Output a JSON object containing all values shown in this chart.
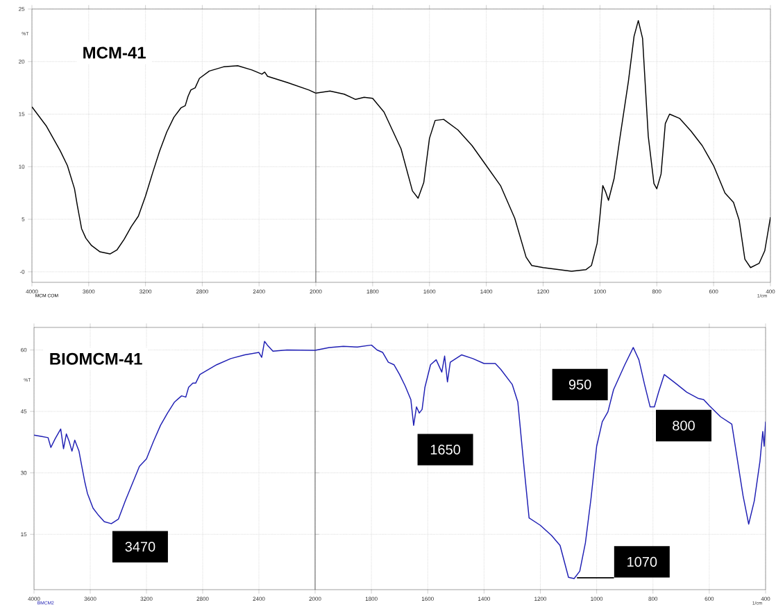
{
  "chart_data": [
    {
      "type": "line",
      "title": "MCM-41",
      "ylabel": "%T",
      "annotations": [
        "MCM COM"
      ],
      "color": "#000000",
      "grid": true,
      "x": [
        4000,
        3950,
        3900,
        3850,
        3800,
        3750,
        3700,
        3680,
        3650,
        3620,
        3580,
        3520,
        3450,
        3400,
        3350,
        3300,
        3250,
        3200,
        3150,
        3100,
        3050,
        3000,
        2950,
        2920,
        2900,
        2880,
        2850,
        2820,
        2750,
        2650,
        2550,
        2450,
        2380,
        2360,
        2340,
        2200,
        2050,
        2000
      ],
      "values": [
        15.7,
        14.8,
        13.9,
        12.7,
        11.5,
        10.1,
        7.9,
        6.3,
        4.1,
        3.2,
        2.5,
        1.9,
        1.7,
        2.1,
        3.1,
        4.3,
        5.3,
        7.2,
        9.4,
        11.5,
        13.3,
        14.7,
        15.6,
        15.8,
        16.7,
        17.3,
        17.5,
        18.4,
        19.1,
        19.5,
        19.6,
        19.2,
        18.8,
        19.0,
        18.6,
        18.0,
        17.3,
        17.0
      ],
      "xlim": [
        4000,
        2000
      ],
      "xticks": [
        4000,
        3600,
        3200,
        2800,
        2400,
        2000
      ],
      "ylim": [
        -1,
        25
      ],
      "yticks": [
        {
          "value": 0,
          "label": "-0"
        },
        5,
        10,
        15,
        20,
        25
      ]
    },
    {
      "type": "line",
      "xlabel": "1/cm",
      "color": "#000000",
      "grid": true,
      "tick_labels": "x",
      "x": [
        2000,
        1950,
        1900,
        1860,
        1830,
        1800,
        1760,
        1700,
        1660,
        1640,
        1620,
        1600,
        1580,
        1550,
        1500,
        1450,
        1400,
        1350,
        1300,
        1260,
        1240,
        1200,
        1100,
        1050,
        1030,
        1010,
        1000,
        990,
        980,
        970,
        950,
        930,
        900,
        880,
        865,
        850,
        830,
        810,
        800,
        785,
        770,
        755,
        720,
        680,
        640,
        600,
        560,
        530,
        510,
        490,
        470,
        440,
        420,
        400
      ],
      "values": [
        17.0,
        17.2,
        16.9,
        16.4,
        16.6,
        16.5,
        15.2,
        11.7,
        7.7,
        7.0,
        8.5,
        12.7,
        14.4,
        14.5,
        13.5,
        12.0,
        10.1,
        8.2,
        5.1,
        1.4,
        0.6,
        0.4,
        0.05,
        0.2,
        0.6,
        2.7,
        5.3,
        8.2,
        7.6,
        6.8,
        8.9,
        12.7,
        18.1,
        22.4,
        23.9,
        22.2,
        12.9,
        8.4,
        7.9,
        9.3,
        14.1,
        15.0,
        14.6,
        13.4,
        12.0,
        10.1,
        7.5,
        6.6,
        4.9,
        1.2,
        0.4,
        0.8,
        2.0,
        5.2
      ],
      "xlim": [
        2000,
        400
      ],
      "xticks": [
        1800,
        1600,
        1400,
        1200,
        1000,
        800,
        600,
        400
      ],
      "ylim": [
        -1,
        25
      ],
      "yticks": [
        0,
        5,
        10,
        15,
        20,
        25
      ]
    },
    {
      "type": "line",
      "title": "BIOMCM-41",
      "ylabel": "%T",
      "color": "#1f1fb4",
      "grid": true,
      "annotations": [
        "BMCM2",
        {
          "text": "3470",
          "x": 3470,
          "y": 17.9
        }
      ],
      "x": [
        4000,
        3950,
        3900,
        3880,
        3850,
        3810,
        3790,
        3770,
        3750,
        3730,
        3710,
        3680,
        3660,
        3640,
        3620,
        3580,
        3540,
        3500,
        3450,
        3400,
        3350,
        3300,
        3250,
        3200,
        3150,
        3100,
        3050,
        3000,
        2950,
        2920,
        2900,
        2870,
        2850,
        2820,
        2700,
        2600,
        2500,
        2400,
        2380,
        2360,
        2340,
        2300,
        2200,
        2000
      ],
      "values": [
        39.2,
        38.9,
        38.6,
        36.2,
        38.3,
        40.7,
        35.9,
        39.5,
        37.7,
        35.3,
        38.0,
        35.3,
        31.6,
        28.0,
        25.0,
        21.4,
        19.6,
        18.1,
        17.6,
        18.7,
        23.2,
        27.4,
        31.6,
        33.4,
        37.7,
        41.6,
        44.6,
        47.3,
        48.8,
        48.5,
        50.9,
        51.9,
        51.9,
        54.0,
        56.4,
        57.9,
        58.8,
        59.4,
        58.2,
        62.1,
        61.2,
        59.7,
        60.0,
        59.9
      ],
      "xlim": [
        4000,
        2000
      ],
      "xticks": [
        4000,
        3600,
        3200,
        2800,
        2400,
        2000
      ],
      "ylim": [
        1.5,
        65.5
      ],
      "yticks": [
        15,
        30,
        45,
        60
      ]
    },
    {
      "type": "line",
      "xlabel": "1/cm",
      "color": "#1f1fb4",
      "grid": true,
      "tick_labels": "x",
      "annotations": [
        {
          "text": "1650",
          "x": 1650,
          "y": 41.6
        },
        {
          "text": "1070",
          "x": 1070,
          "y": 4.4
        },
        {
          "text": "950",
          "x": 950,
          "y": 47.0
        },
        {
          "text": "800",
          "x": 800,
          "y": 46.1
        }
      ],
      "x": [
        2000,
        1950,
        1900,
        1850,
        1800,
        1780,
        1760,
        1740,
        1720,
        1700,
        1680,
        1660,
        1650,
        1640,
        1630,
        1620,
        1610,
        1590,
        1570,
        1550,
        1540,
        1530,
        1520,
        1480,
        1440,
        1400,
        1360,
        1340,
        1300,
        1280,
        1260,
        1240,
        1200,
        1160,
        1130,
        1100,
        1080,
        1060,
        1040,
        1020,
        1000,
        980,
        960,
        940,
        900,
        870,
        850,
        830,
        810,
        795,
        780,
        760,
        720,
        680,
        640,
        620,
        600,
        560,
        520,
        480,
        460,
        440,
        420,
        410,
        405,
        400
      ],
      "values": [
        59.9,
        60.6,
        60.9,
        60.7,
        61.2,
        60.0,
        59.4,
        57.0,
        56.4,
        54.0,
        51.2,
        47.9,
        41.6,
        46.1,
        44.6,
        45.5,
        50.9,
        56.4,
        57.6,
        54.6,
        58.5,
        52.2,
        57.0,
        58.8,
        57.9,
        56.7,
        56.7,
        55.2,
        51.6,
        47.3,
        32.8,
        19.0,
        17.2,
        14.7,
        12.3,
        4.5,
        4.2,
        6.0,
        12.9,
        23.8,
        36.5,
        42.5,
        44.9,
        50.3,
        56.4,
        60.6,
        57.6,
        51.6,
        46.1,
        46.1,
        49.7,
        54.0,
        51.9,
        49.7,
        48.2,
        47.9,
        46.4,
        43.7,
        41.9,
        24.4,
        17.5,
        23.2,
        32.8,
        40.1,
        36.5,
        42.5
      ],
      "xlim": [
        2000,
        400
      ],
      "xticks": [
        1800,
        1600,
        1400,
        1200,
        1000,
        800,
        600,
        400
      ],
      "ylim": [
        1.5,
        65.5
      ],
      "yticks": [
        15,
        30,
        45,
        60
      ]
    }
  ]
}
